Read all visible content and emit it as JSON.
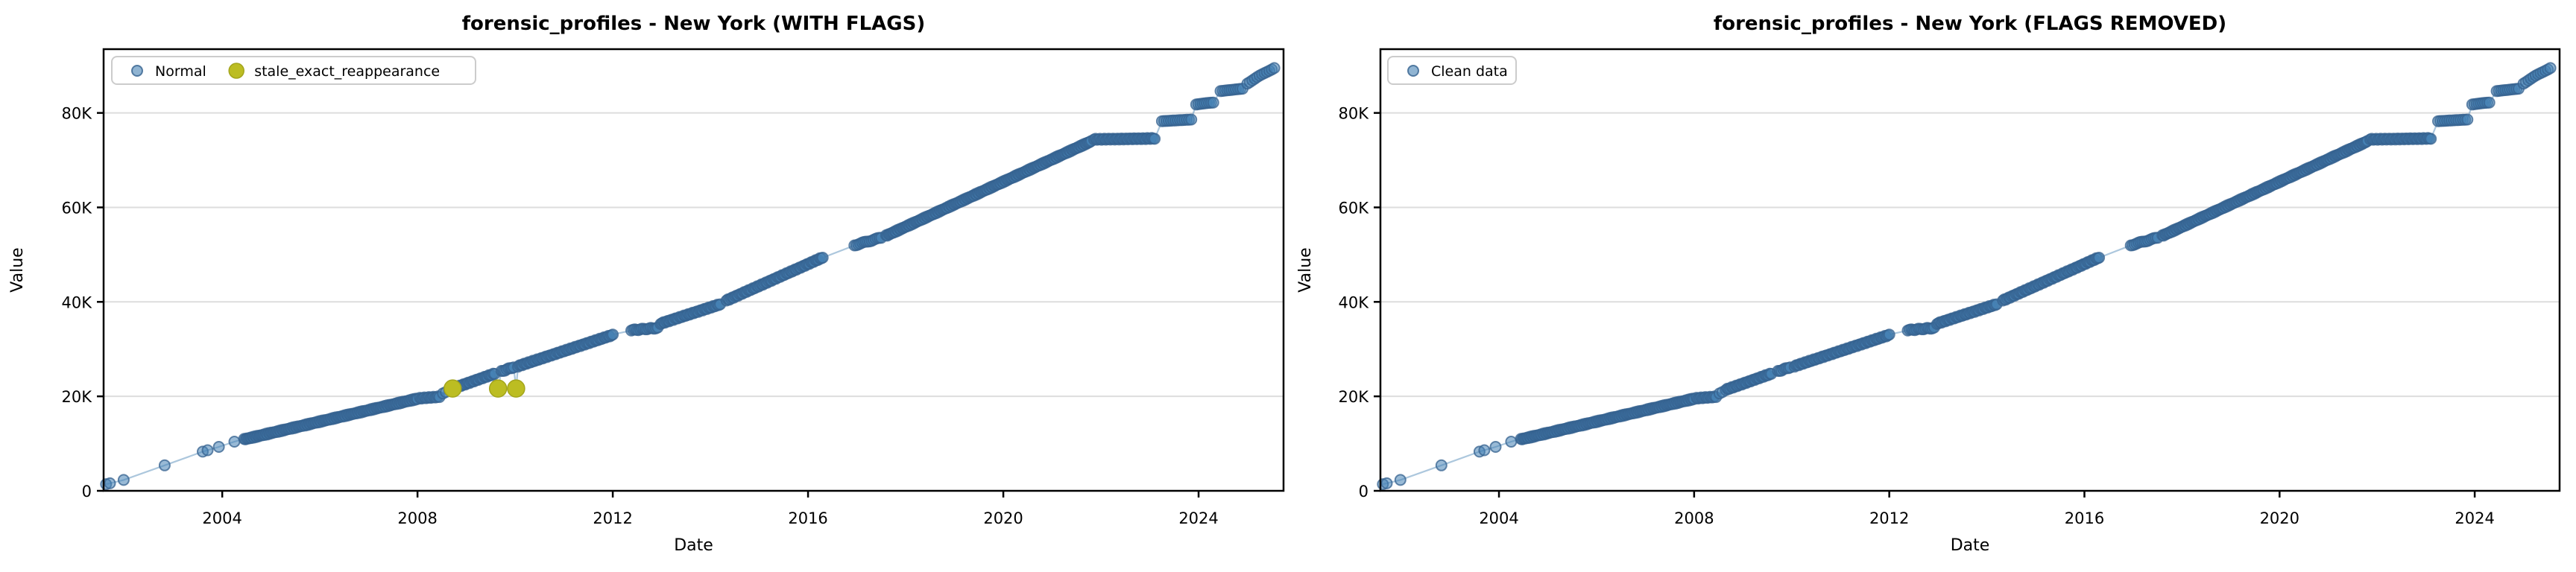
{
  "figure": {
    "background": "#ffffff",
    "xlabel": "Date",
    "ylabel": "Value"
  },
  "colors": {
    "normal_fill": "#4682B4",
    "normal_edge": "#35618f",
    "line": "#4682B4",
    "flagged_fill": "#bcbd22",
    "flagged_edge": "#a3a51c",
    "grid": "#dddddd",
    "spine": "#000000",
    "legend_border": "#cccccc",
    "text": "#000000"
  },
  "chart_data": {
    "type": "scatter",
    "xlabel": "Date",
    "ylabel": "Value",
    "xlim": [
      2001.57,
      2025.74
    ],
    "ylim": [
      0,
      93500
    ],
    "grid": "horizontal-only",
    "xticks": [
      {
        "v": 2004,
        "label": "2004"
      },
      {
        "v": 2008,
        "label": "2008"
      },
      {
        "v": 2012,
        "label": "2012"
      },
      {
        "v": 2016,
        "label": "2016"
      },
      {
        "v": 2020,
        "label": "2020"
      },
      {
        "v": 2024,
        "label": "2024"
      }
    ],
    "yticks": [
      {
        "v": 0,
        "label": "0"
      },
      {
        "v": 20000,
        "label": "20K"
      },
      {
        "v": 40000,
        "label": "40K"
      },
      {
        "v": 60000,
        "label": "60K"
      },
      {
        "v": 80000,
        "label": "80K"
      }
    ],
    "trend_segments": [
      {
        "points": [
          [
            2001.62,
            1400
          ],
          [
            2001.7,
            1600
          ],
          [
            2001.98,
            2300
          ],
          [
            2002.82,
            5400
          ],
          [
            2003.6,
            8300
          ],
          [
            2003.7,
            8600
          ],
          [
            2003.93,
            9300
          ],
          [
            2004.25,
            10400
          ]
        ]
      },
      {
        "from": 2004.45,
        "to": 2008.0,
        "v_from": 10900,
        "v_to": 19500,
        "step": 0.025
      },
      {
        "from": 2008.05,
        "to": 2008.45,
        "v_from": 19600,
        "v_to": 19900,
        "step": 0.03
      },
      {
        "points": [
          [
            2008.52,
            20600
          ],
          [
            2008.58,
            20900
          ]
        ]
      },
      {
        "from": 2008.65,
        "to": 2009.58,
        "v_from": 21400,
        "v_to": 24800,
        "step": 0.03
      },
      {
        "from": 2009.72,
        "to": 2009.97,
        "v_from": 25300,
        "v_to": 26200,
        "step": 0.035
      },
      {
        "from": 2010.06,
        "to": 2012.0,
        "v_from": 26400,
        "v_to": 33000,
        "step": 0.03
      },
      {
        "from": 2012.38,
        "to": 2012.92,
        "v_from": 34000,
        "v_to": 34500,
        "step": 0.035
      },
      {
        "from": 2012.98,
        "to": 2014.2,
        "v_from": 35400,
        "v_to": 39500,
        "step": 0.03
      },
      {
        "from": 2014.33,
        "to": 2016.3,
        "v_from": 40300,
        "v_to": 49400,
        "step": 0.03
      },
      {
        "from": 2016.95,
        "to": 2017.5,
        "v_from": 52000,
        "v_to": 53600,
        "step": 0.04
      },
      {
        "from": 2017.6,
        "to": 2021.8,
        "v_from": 54000,
        "v_to": 74000,
        "step": 0.025
      },
      {
        "from": 2021.86,
        "to": 2023.1,
        "v_from": 74400,
        "v_to": 74600,
        "step": 0.03
      },
      {
        "from": 2023.25,
        "to": 2023.85,
        "v_from": 78200,
        "v_to": 78500,
        "step": 0.045
      },
      {
        "from": 2023.95,
        "to": 2024.3,
        "v_from": 81800,
        "v_to": 82100,
        "step": 0.045
      },
      {
        "from": 2024.45,
        "to": 2024.9,
        "v_from": 84700,
        "v_to": 85100,
        "step": 0.045
      },
      {
        "from": 2025.0,
        "to": 2025.55,
        "v_from": 86300,
        "v_to": 89600,
        "step": 0.05
      }
    ],
    "stale_dips": [
      [
        2009.65,
        21660
      ],
      [
        2010.02,
        21660
      ]
    ],
    "charts": [
      {
        "id": "with-flags",
        "title": "forensic_profiles - New York (WITH FLAGS)",
        "include_dips": true,
        "flagged_points": [
          [
            2008.72,
            21660
          ],
          [
            2009.65,
            21660
          ],
          [
            2010.02,
            21660
          ]
        ],
        "legend": [
          {
            "label": "Normal",
            "marker": "normal"
          },
          {
            "label": "stale_exact_reappearance",
            "marker": "flagged"
          }
        ]
      },
      {
        "id": "flags-removed",
        "title": "forensic_profiles - New York (FLAGS REMOVED)",
        "include_dips": false,
        "flagged_points": [],
        "legend": [
          {
            "label": "Clean data",
            "marker": "normal"
          }
        ]
      }
    ]
  }
}
